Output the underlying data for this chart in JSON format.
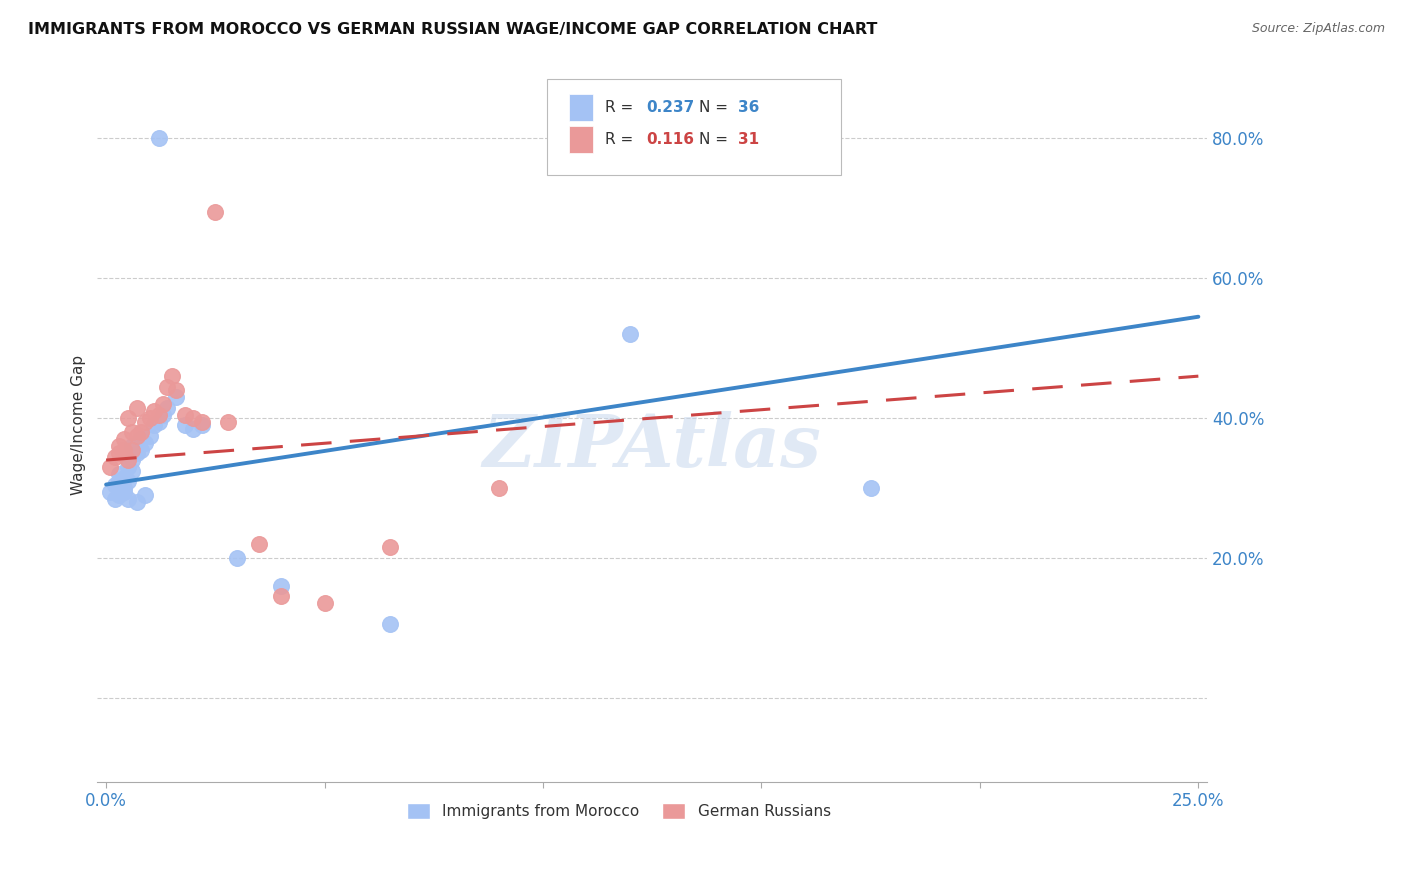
{
  "title": "IMMIGRANTS FROM MOROCCO VS GERMAN RUSSIAN WAGE/INCOME GAP CORRELATION CHART",
  "source": "Source: ZipAtlas.com",
  "ylabel": "Wage/Income Gap",
  "y_ticks": [
    0.0,
    0.2,
    0.4,
    0.6,
    0.8
  ],
  "y_tick_labels": [
    "",
    "20.0%",
    "40.0%",
    "60.0%",
    "80.0%"
  ],
  "x_lim": [
    0.0,
    0.25
  ],
  "y_lim": [
    -0.12,
    0.9
  ],
  "legend_blue_R": "0.237",
  "legend_blue_N": "36",
  "legend_pink_R": "0.116",
  "legend_pink_N": "31",
  "legend_label_blue": "Immigrants from Morocco",
  "legend_label_pink": "German Russians",
  "blue_color": "#a4c2f4",
  "pink_color": "#ea9999",
  "line_blue": "#3d85c8",
  "line_pink": "#cc4444",
  "watermark": "ZIPAtlas",
  "morocco_x": [
    0.001,
    0.002,
    0.002,
    0.003,
    0.003,
    0.003,
    0.004,
    0.004,
    0.004,
    0.005,
    0.005,
    0.005,
    0.006,
    0.006,
    0.006,
    0.007,
    0.007,
    0.008,
    0.008,
    0.009,
    0.009,
    0.01,
    0.011,
    0.012,
    0.013,
    0.014,
    0.016,
    0.018,
    0.02,
    0.022,
    0.03,
    0.04,
    0.065,
    0.12,
    0.175,
    0.012
  ],
  "morocco_y": [
    0.295,
    0.285,
    0.305,
    0.31,
    0.29,
    0.32,
    0.3,
    0.315,
    0.295,
    0.33,
    0.285,
    0.31,
    0.34,
    0.325,
    0.36,
    0.35,
    0.28,
    0.355,
    0.37,
    0.365,
    0.29,
    0.375,
    0.39,
    0.395,
    0.405,
    0.415,
    0.43,
    0.39,
    0.385,
    0.39,
    0.2,
    0.16,
    0.105,
    0.52,
    0.3,
    0.8
  ],
  "german_x": [
    0.001,
    0.002,
    0.003,
    0.003,
    0.004,
    0.004,
    0.005,
    0.005,
    0.006,
    0.006,
    0.007,
    0.007,
    0.008,
    0.009,
    0.01,
    0.011,
    0.012,
    0.013,
    0.014,
    0.015,
    0.016,
    0.018,
    0.02,
    0.022,
    0.025,
    0.028,
    0.035,
    0.04,
    0.05,
    0.065,
    0.09
  ],
  "german_y": [
    0.33,
    0.345,
    0.35,
    0.36,
    0.355,
    0.37,
    0.34,
    0.4,
    0.355,
    0.38,
    0.375,
    0.415,
    0.38,
    0.395,
    0.4,
    0.41,
    0.405,
    0.42,
    0.445,
    0.46,
    0.44,
    0.405,
    0.4,
    0.395,
    0.695,
    0.395,
    0.22,
    0.145,
    0.135,
    0.215,
    0.3
  ],
  "line_blue_x0": 0.0,
  "line_blue_y0": 0.305,
  "line_blue_x1": 0.25,
  "line_blue_y1": 0.545,
  "line_pink_x0": 0.0,
  "line_pink_y0": 0.34,
  "line_pink_x1": 0.25,
  "line_pink_y1": 0.46
}
